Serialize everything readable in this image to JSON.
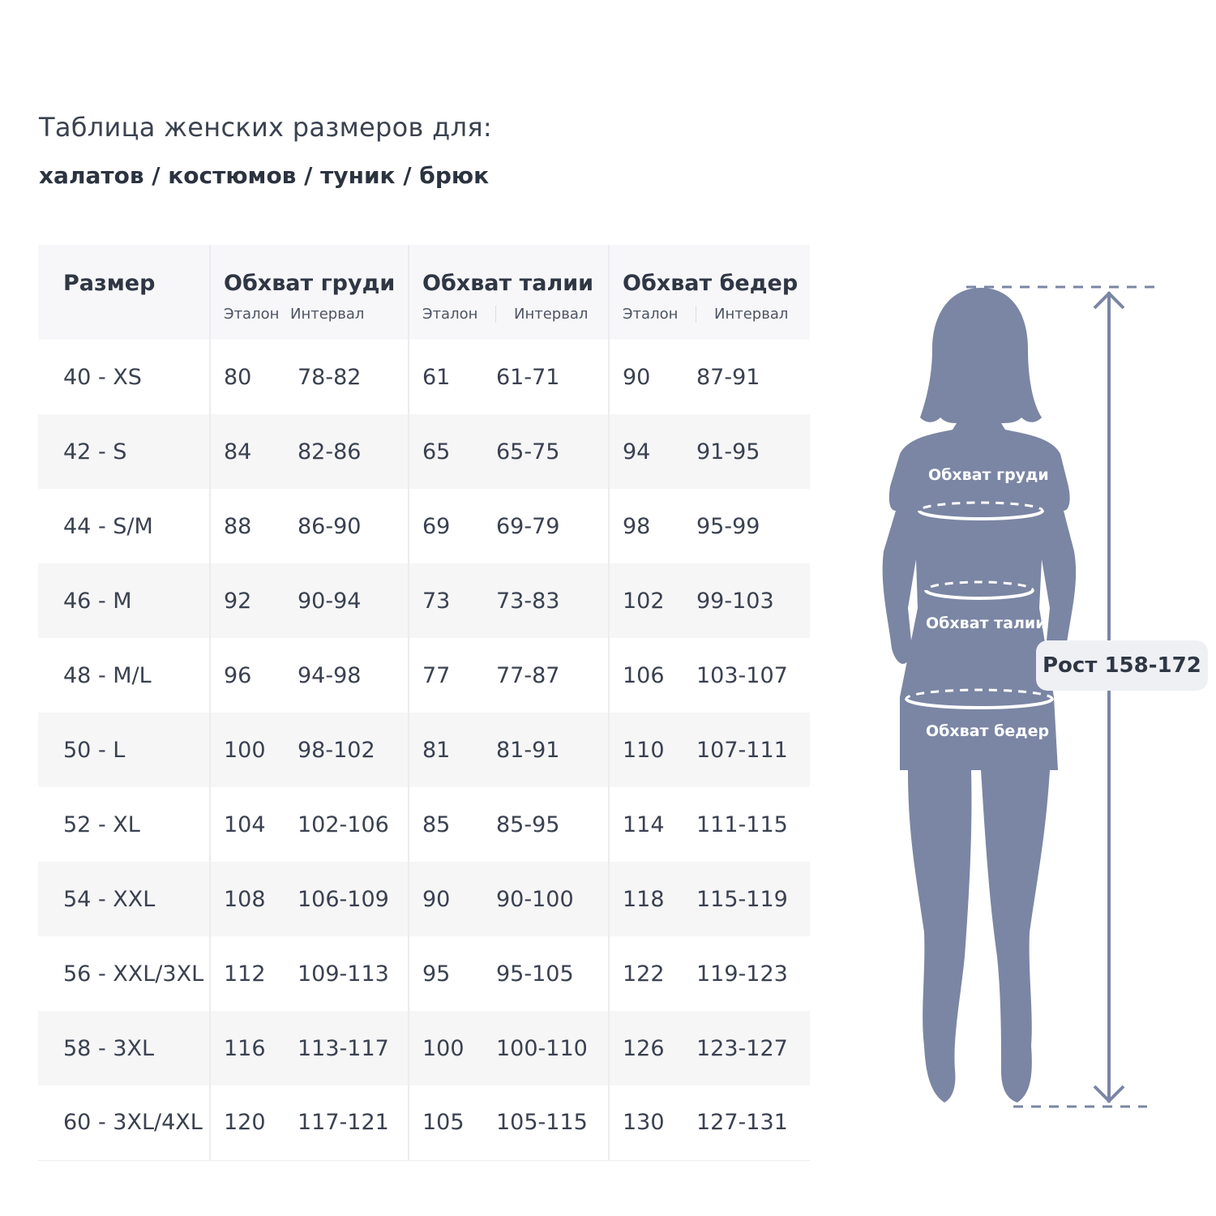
{
  "title": "Таблица женских размеров для:",
  "subtitle": "халатов / костюмов / туник / брюк",
  "table": {
    "headers": [
      "Размер",
      "Обхват груди",
      "Обхват талии",
      "Обхват бедер"
    ],
    "sub_standard": "Эталон",
    "sub_interval": "Интервал",
    "rows": [
      [
        "40 - XS",
        "80",
        "78-82",
        "61",
        "61-71",
        "90",
        "87-91"
      ],
      [
        "42 - S",
        "84",
        "82-86",
        "65",
        "65-75",
        "94",
        "91-95"
      ],
      [
        "44 - S/M",
        "88",
        "86-90",
        "69",
        "69-79",
        "98",
        "95-99"
      ],
      [
        "46 - M",
        "92",
        "90-94",
        "73",
        "73-83",
        "102",
        "99-103"
      ],
      [
        "48 - M/L",
        "96",
        "94-98",
        "77",
        "77-87",
        "106",
        "103-107"
      ],
      [
        "50 - L",
        "100",
        "98-102",
        "81",
        "81-91",
        "110",
        "107-111"
      ],
      [
        "52 - XL",
        "104",
        "102-106",
        "85",
        "85-95",
        "114",
        "111-115"
      ],
      [
        "54 - XXL",
        "108",
        "106-109",
        "90",
        "90-100",
        "118",
        "115-119"
      ],
      [
        "56 - XXL/3XL",
        "112",
        "109-113",
        "95",
        "95-105",
        "122",
        "119-123"
      ],
      [
        "58 - 3XL",
        "116",
        "113-117",
        "100",
        "100-110",
        "126",
        "123-127"
      ],
      [
        "60 - 3XL/4XL",
        "120",
        "117-121",
        "105",
        "105-115",
        "130",
        "127-131"
      ]
    ]
  },
  "figure": {
    "chest_label": "Обхват груди",
    "waist_label": "Обхват талии",
    "hips_label": "Обхват бедер",
    "height_label": "Рост 158-172",
    "color": "#7b86a4"
  }
}
